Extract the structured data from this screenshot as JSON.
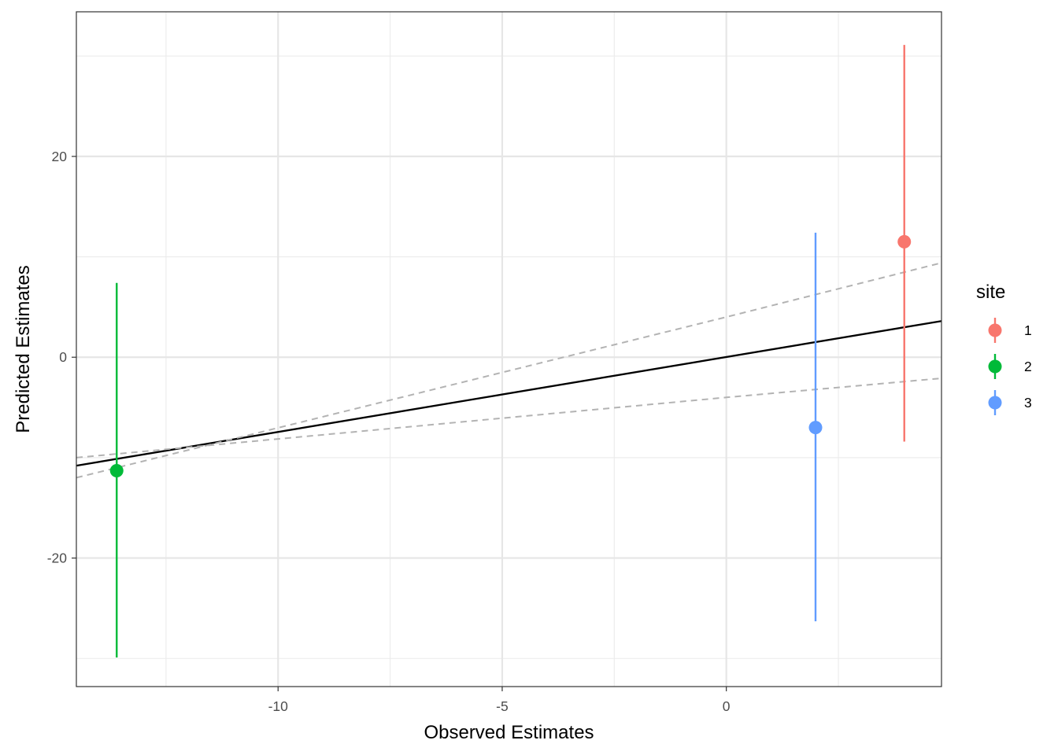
{
  "chart_data": {
    "type": "scatter",
    "xlabel": "Observed Estimates",
    "ylabel": "Predicted Estimates",
    "xlim": [
      -14.5,
      4.8
    ],
    "ylim": [
      -32.8,
      34.4
    ],
    "x_ticks": [
      {
        "value": -10,
        "label": "-10"
      },
      {
        "value": -5,
        "label": "-5"
      },
      {
        "value": 0,
        "label": "0"
      }
    ],
    "x_minor_ticks": [
      -12.5,
      -7.5,
      -2.5,
      2.5
    ],
    "y_ticks": [
      {
        "value": -20,
        "label": "-20"
      },
      {
        "value": 0,
        "label": "0"
      },
      {
        "value": 20,
        "label": "20"
      }
    ],
    "y_minor_ticks": [
      -30,
      -10,
      10,
      30
    ],
    "grid": true,
    "legend": {
      "title": "site",
      "position": "right",
      "entries": [
        {
          "label": "1",
          "color": "#F8766D"
        },
        {
          "label": "2",
          "color": "#00BA38"
        },
        {
          "label": "3",
          "color": "#619CFF"
        }
      ]
    },
    "series": [
      {
        "name": "1",
        "color": "#F8766D",
        "x": 3.97,
        "y": 11.5,
        "ymin": -8.4,
        "ymax": 31.1
      },
      {
        "name": "2",
        "color": "#00BA38",
        "x": -13.6,
        "y": -11.3,
        "ymin": -29.9,
        "ymax": 7.4
      },
      {
        "name": "3",
        "color": "#619CFF",
        "x": 1.99,
        "y": -7.0,
        "ymin": -26.3,
        "ymax": 12.4
      }
    ],
    "reference_lines": [
      {
        "kind": "fit",
        "style": "solid",
        "color": "#000000",
        "x": [
          -14.5,
          4.8
        ],
        "y": [
          -10.8,
          3.6
        ]
      },
      {
        "kind": "upper-bound",
        "style": "dashed",
        "color": "#b3b3b3",
        "x": [
          -14.5,
          0,
          4.8
        ],
        "y": [
          -12.0,
          4.0,
          9.4
        ]
      },
      {
        "kind": "lower-bound",
        "style": "dashed",
        "color": "#b3b3b3",
        "x": [
          -14.5,
          0,
          4.8
        ],
        "y": [
          -10.0,
          -4.0,
          -2.1
        ]
      }
    ]
  }
}
